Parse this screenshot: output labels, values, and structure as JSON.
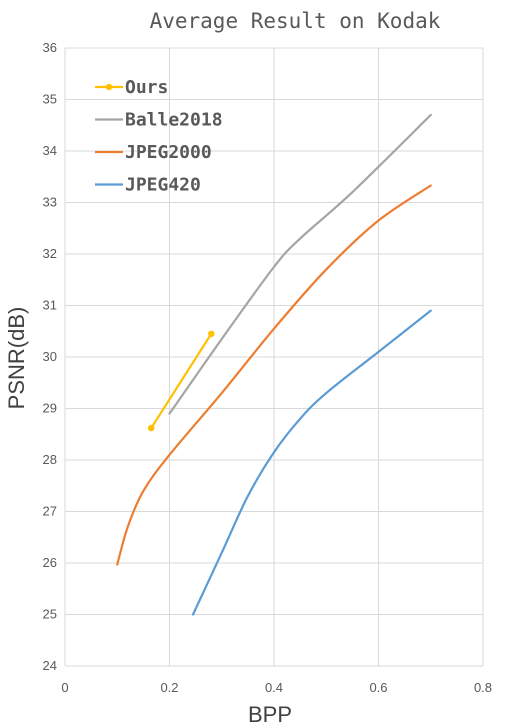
{
  "chart_data": {
    "type": "line",
    "title": "Average Result on Kodak",
    "xlabel": "BPP",
    "ylabel": "PSNR(dB)",
    "xlim": [
      0,
      0.8
    ],
    "ylim": [
      24,
      36
    ],
    "xticks": [
      0,
      0.2,
      0.4,
      0.6,
      0.8
    ],
    "xtick_labels": [
      "0",
      "0.2",
      "0.4",
      "0.6",
      "0.8"
    ],
    "yticks": [
      24,
      25,
      26,
      27,
      28,
      29,
      30,
      31,
      32,
      33,
      34,
      35,
      36
    ],
    "ytick_labels": [
      "24",
      "25",
      "26",
      "27",
      "28",
      "29",
      "30",
      "31",
      "32",
      "33",
      "34",
      "35",
      "36"
    ],
    "grid": true,
    "legend_position": "top-left",
    "series": [
      {
        "name": "Ours",
        "color": "#FFC000",
        "markers": true,
        "x": [
          0.165,
          0.28
        ],
        "y": [
          28.62,
          30.45
        ]
      },
      {
        "name": "Balle2018",
        "color": "#A5A5A5",
        "markers": false,
        "x": [
          0.2,
          0.3,
          0.4,
          0.45,
          0.55,
          0.7
        ],
        "y": [
          28.9,
          30.35,
          31.75,
          32.3,
          33.2,
          34.7
        ]
      },
      {
        "name": "JPEG2000",
        "color": "#ED7D31",
        "markers": false,
        "x": [
          0.1,
          0.12,
          0.15,
          0.2,
          0.3,
          0.4,
          0.5,
          0.6,
          0.7
        ],
        "y": [
          25.97,
          26.7,
          27.4,
          28.1,
          29.3,
          30.55,
          31.7,
          32.65,
          33.33
        ]
      },
      {
        "name": "JPEG420",
        "color": "#5B9BD5",
        "markers": false,
        "x": [
          0.245,
          0.3,
          0.35,
          0.4,
          0.45,
          0.5,
          0.6,
          0.7
        ],
        "y": [
          25.0,
          26.2,
          27.3,
          28.15,
          28.8,
          29.3,
          30.1,
          30.9
        ]
      }
    ]
  }
}
